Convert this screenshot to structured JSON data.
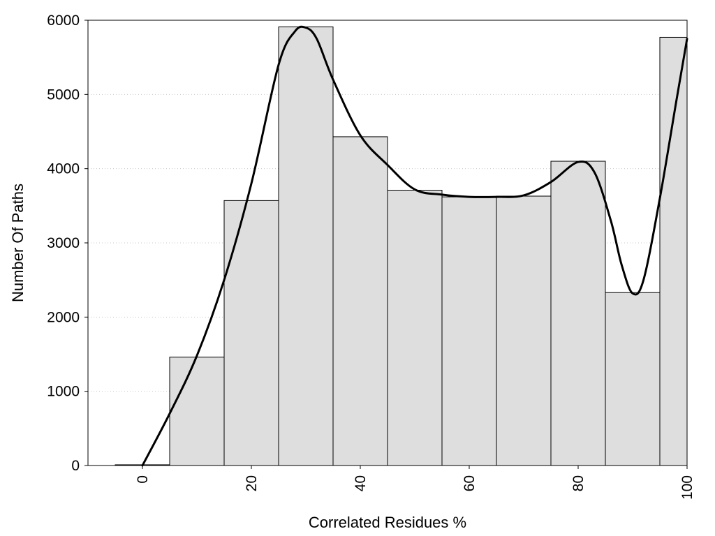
{
  "chart_data": {
    "type": "bar",
    "title": "",
    "xlabel": "Correlated Residues %",
    "ylabel": "Number Of Paths",
    "xlim": [
      -10,
      100
    ],
    "ylim": [
      0,
      6000
    ],
    "x_ticks": [
      "0",
      "20",
      "40",
      "60",
      "80",
      "100"
    ],
    "y_ticks": [
      "0",
      "1000",
      "2000",
      "3000",
      "4000",
      "5000",
      "6000"
    ],
    "grid": "horizontal dotted",
    "bar_color": "#dedede",
    "bar_edge_color": "#000000",
    "bins": [
      {
        "x0": -5,
        "x1": 5,
        "value": 10
      },
      {
        "x0": 5,
        "x1": 15,
        "value": 1460
      },
      {
        "x0": 15,
        "x1": 25,
        "value": 3570
      },
      {
        "x0": 25,
        "x1": 35,
        "value": 5910
      },
      {
        "x0": 35,
        "x1": 45,
        "value": 4430
      },
      {
        "x0": 45,
        "x1": 55,
        "value": 3710
      },
      {
        "x0": 55,
        "x1": 65,
        "value": 3620
      },
      {
        "x0": 65,
        "x1": 75,
        "value": 3630
      },
      {
        "x0": 75,
        "x1": 85,
        "value": 4100
      },
      {
        "x0": 85,
        "x1": 95,
        "value": 2330
      },
      {
        "x0": 95,
        "x1": 100,
        "value": 5770
      }
    ],
    "series": [
      {
        "type": "line",
        "color": "#000000",
        "x": [
          0,
          5,
          10,
          15,
          20,
          25,
          28,
          30,
          32,
          35,
          40,
          45,
          50,
          55,
          60,
          65,
          70,
          75,
          80,
          83,
          86,
          88,
          90,
          92,
          95,
          98,
          100
        ],
        "y": [
          0,
          700,
          1480,
          2500,
          3800,
          5400,
          5850,
          5900,
          5750,
          5200,
          4450,
          4050,
          3720,
          3650,
          3620,
          3620,
          3640,
          3820,
          4090,
          3950,
          3300,
          2700,
          2320,
          2500,
          3600,
          4900,
          5750
        ]
      }
    ]
  }
}
